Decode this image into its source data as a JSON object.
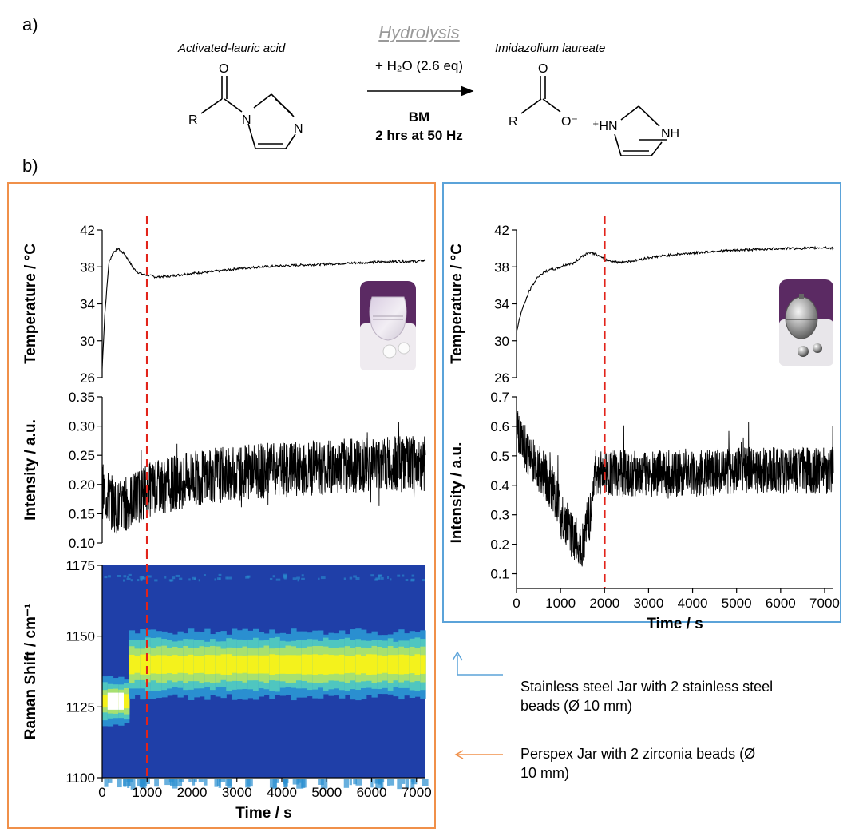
{
  "panel_labels": {
    "a": "a)",
    "b": "b)"
  },
  "scheme": {
    "reactant_label": "Activated-lauric acid",
    "product_label": "Imidazolium laureate",
    "reaction_title": "Hydrolysis",
    "reagent": "+ H₂O (2.6 eq)",
    "method": "BM",
    "conditions": "2 hrs at 50 Hz",
    "atoms": {
      "O": "O",
      "R": "R",
      "N": "N",
      "O_minus": "O⁻",
      "HN_plus": "⁺HN",
      "NH": "NH"
    }
  },
  "legend": {
    "stainless": "Stainless steel Jar with 2 stainless steel beads (Ø 10 mm)",
    "stainless_line1": "Stainless steel Jar with 2 stainless steel",
    "stainless_line2": "beads (Ø 10 mm)",
    "perspex": "Perspex Jar with 2 zirconia beads (Ø 10 mm)",
    "perspex_line1": "Perspex Jar with 2 zirconia beads (Ø",
    "perspex_line2": "10 mm)",
    "colors": {
      "stainless": "#5ba3d9",
      "perspex": "#f0904a"
    }
  },
  "chart_data": [
    {
      "id": "perspex-temperature",
      "type": "line",
      "ylabel": "Temperature / °C",
      "xlim": [
        0,
        7200
      ],
      "ylim": [
        26,
        42
      ],
      "yticks": [
        26,
        30,
        34,
        38,
        42
      ],
      "series": [
        {
          "x": [
            0,
            60,
            150,
            250,
            350,
            420,
            500,
            600,
            700,
            800,
            900,
            1000,
            1200,
            1500,
            2000,
            2500,
            3000,
            3500,
            4000,
            4500,
            5000,
            5500,
            6000,
            6500,
            7000,
            7200
          ],
          "values": [
            27,
            33,
            38.5,
            39.6,
            40,
            39.7,
            39.4,
            38.6,
            37.8,
            37.4,
            37.2,
            37.1,
            36.9,
            37.0,
            37.3,
            37.5,
            37.8,
            38.0,
            38.1,
            38.2,
            38.3,
            38.4,
            38.5,
            38.6,
            38.6,
            38.7
          ]
        }
      ],
      "event_line_x": 1000
    },
    {
      "id": "perspex-intensity",
      "type": "line",
      "ylabel": "Intensity / a.u.",
      "xlim": [
        0,
        7200
      ],
      "ylim": [
        0.1,
        0.35
      ],
      "yticks": [
        0.1,
        0.15,
        0.2,
        0.25,
        0.3,
        0.35
      ],
      "series": [
        {
          "x": [
            0,
            200,
            400,
            600,
            800,
            1000,
            1500,
            2000,
            2500,
            3000,
            4000,
            5000,
            6000,
            7000,
            7200
          ],
          "values": [
            0.19,
            0.17,
            0.16,
            0.17,
            0.18,
            0.19,
            0.2,
            0.21,
            0.215,
            0.22,
            0.225,
            0.23,
            0.235,
            0.235,
            0.235
          ]
        }
      ],
      "noise_amplitude": 0.06,
      "event_line_x": 1000
    },
    {
      "id": "perspex-raman-heatmap",
      "type": "heatmap",
      "ylabel": "Raman Shift / cm⁻¹",
      "xlabel": "Time / s",
      "xlim": [
        0,
        7200
      ],
      "ylim": [
        1100,
        1175
      ],
      "yticks": [
        1100,
        1125,
        1150,
        1175
      ],
      "xticks": [
        0,
        1000,
        2000,
        3000,
        4000,
        5000,
        6000,
        7000
      ],
      "bands": [
        {
          "center": 1140,
          "halfwidth": 11
        },
        {
          "center": 1127,
          "halfwidth": 5,
          "x_end": 500
        }
      ],
      "colors": [
        "#1f3fa8",
        "#2a8fd0",
        "#4fc6c0",
        "#a7e070",
        "#f4f21c",
        "#ffffff"
      ],
      "event_line_x": 1000
    },
    {
      "id": "stainless-temperature",
      "type": "line",
      "ylabel": "Temperature / °C",
      "xlim": [
        0,
        7200
      ],
      "ylim": [
        26,
        42
      ],
      "yticks": [
        26,
        30,
        34,
        38,
        42
      ],
      "series": [
        {
          "x": [
            0,
            100,
            300,
            500,
            700,
            900,
            1100,
            1300,
            1500,
            1650,
            1800,
            2000,
            2300,
            2600,
            3000,
            3500,
            4000,
            4500,
            5000,
            5500,
            6000,
            6500,
            7000,
            7200
          ],
          "values": [
            31,
            33,
            35.5,
            37,
            37.6,
            37.8,
            38.2,
            38.4,
            39.2,
            39.6,
            39.4,
            38.8,
            38.5,
            38.6,
            39.0,
            39.3,
            39.5,
            39.7,
            39.8,
            39.9,
            40.0,
            40.0,
            40.1,
            40.0
          ]
        }
      ],
      "event_line_x": 2000
    },
    {
      "id": "stainless-intensity",
      "type": "line",
      "ylabel": "Intensity / a.u.",
      "xlabel": "Time / s",
      "xlim": [
        0,
        7200
      ],
      "ylim": [
        0.05,
        0.7
      ],
      "yticks": [
        0.1,
        0.2,
        0.3,
        0.4,
        0.5,
        0.6,
        0.7
      ],
      "xticks": [
        0,
        1000,
        2000,
        3000,
        4000,
        5000,
        6000,
        7000
      ],
      "series": [
        {
          "x": [
            0,
            100,
            300,
            500,
            700,
            900,
            1000,
            1200,
            1400,
            1500,
            1600,
            1700,
            1750,
            2000,
            3000,
            4000,
            5000,
            6000,
            7000,
            7200
          ],
          "values": [
            0.62,
            0.55,
            0.5,
            0.46,
            0.42,
            0.36,
            0.3,
            0.25,
            0.2,
            0.2,
            0.27,
            0.3,
            0.43,
            0.44,
            0.44,
            0.44,
            0.45,
            0.45,
            0.45,
            0.45
          ]
        }
      ],
      "noise_amplitude": 0.1,
      "event_line_x": 2000
    }
  ]
}
